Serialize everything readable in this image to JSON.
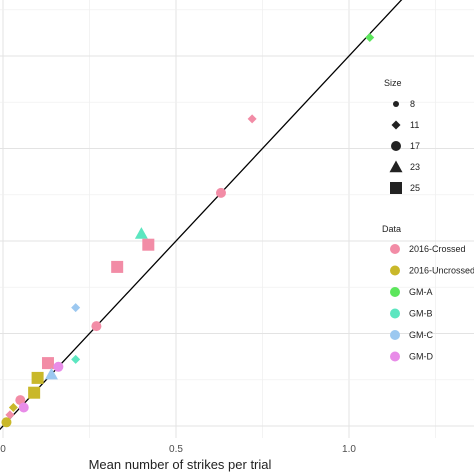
{
  "chart_data": {
    "type": "scatter",
    "xlabel": "Mean number of strikes per trial",
    "ylabel": "",
    "xlim": [
      0,
      1.3
    ],
    "ylim": [
      0,
      1.3
    ],
    "x_ticks": [
      "0",
      "0.5",
      "1.0"
    ],
    "grid": true,
    "fit_line": {
      "slope": 1.0,
      "intercept": 0.0
    },
    "legends": {
      "size": {
        "title": "Size",
        "items": [
          "8",
          "11",
          "17",
          "23",
          "25"
        ]
      },
      "data": {
        "title": "Data",
        "items": [
          "2016-Crossed",
          "2016-Uncrossed",
          "GM-A",
          "GM-B",
          "GM-C",
          "GM-D"
        ]
      }
    },
    "colors": {
      "2016-Crossed": "#f28ca6",
      "2016-Uncrossed": "#c9b82a",
      "GM-A": "#5ce65c",
      "GM-B": "#5ce6c0",
      "GM-C": "#9cc8f0",
      "GM-D": "#e88ce8"
    },
    "series": [
      {
        "group": "GM-A",
        "size": "11",
        "x": 1.06,
        "y": 1.05
      },
      {
        "group": "2016-Crossed",
        "size": "11",
        "x": 0.72,
        "y": 0.83
      },
      {
        "group": "2016-Crossed",
        "size": "17",
        "x": 0.63,
        "y": 0.63
      },
      {
        "group": "GM-B",
        "size": "23",
        "x": 0.4,
        "y": 0.52
      },
      {
        "group": "2016-Crossed",
        "size": "25",
        "x": 0.42,
        "y": 0.49
      },
      {
        "group": "2016-Crossed",
        "size": "25",
        "x": 0.33,
        "y": 0.43
      },
      {
        "group": "GM-C",
        "size": "11",
        "x": 0.21,
        "y": 0.32
      },
      {
        "group": "2016-Crossed",
        "size": "17",
        "x": 0.27,
        "y": 0.27
      },
      {
        "group": "GM-B",
        "size": "11",
        "x": 0.21,
        "y": 0.18
      },
      {
        "group": "2016-Crossed",
        "size": "25",
        "x": 0.13,
        "y": 0.17
      },
      {
        "group": "GM-D",
        "size": "17",
        "x": 0.16,
        "y": 0.16
      },
      {
        "group": "GM-C",
        "size": "23",
        "x": 0.14,
        "y": 0.14
      },
      {
        "group": "2016-Uncrossed",
        "size": "25",
        "x": 0.1,
        "y": 0.13
      },
      {
        "group": "2016-Uncrossed",
        "size": "25",
        "x": 0.09,
        "y": 0.09
      },
      {
        "group": "2016-Crossed",
        "size": "17",
        "x": 0.05,
        "y": 0.07
      },
      {
        "group": "GM-D",
        "size": "17",
        "x": 0.06,
        "y": 0.05
      },
      {
        "group": "2016-Uncrossed",
        "size": "11",
        "x": 0.03,
        "y": 0.05
      },
      {
        "group": "2016-Crossed",
        "size": "11",
        "x": 0.02,
        "y": 0.03
      },
      {
        "group": "2016-Uncrossed",
        "size": "17",
        "x": 0.01,
        "y": 0.01
      }
    ]
  }
}
